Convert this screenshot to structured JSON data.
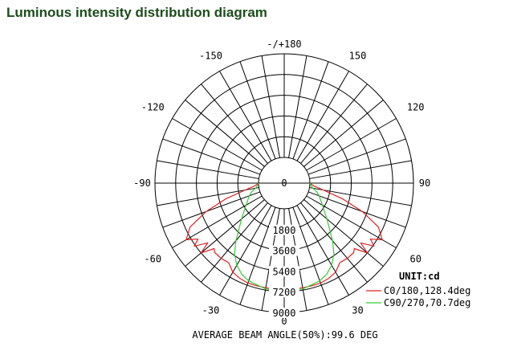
{
  "title": "Luminous intensity distribution diagram",
  "chart_data": {
    "type": "polar",
    "angle_labels": {
      "top": "-/+180",
      "bottom": "0",
      "left_upper": [
        "-150",
        "-120"
      ],
      "right_upper": [
        "150",
        "120"
      ],
      "left_mid": "-90",
      "right_mid": "90",
      "left_lower": [
        "-60",
        "-30"
      ],
      "right_lower": [
        "60",
        "30"
      ]
    },
    "radial_labels": [
      "0",
      "1800",
      "3600",
      "5400",
      "7200",
      "9000"
    ],
    "r_max": 9000,
    "unit": "UNIT:cd",
    "series": [
      {
        "name": "C0/180,128.4deg",
        "color": "#e02020",
        "angles": [
          -90,
          -85,
          -80,
          -75,
          -70,
          -65,
          -60,
          -57,
          -55,
          -52,
          -50,
          -47,
          -45,
          -40,
          -35,
          -30,
          -25,
          -20,
          -15,
          -10,
          -5,
          0,
          5,
          10,
          15,
          20,
          25,
          30,
          35,
          40,
          45,
          47,
          50,
          52,
          55,
          57,
          60,
          65,
          70,
          75,
          80,
          85,
          90
        ],
        "values": [
          0,
          300,
          1200,
          3000,
          5000,
          6800,
          7600,
          6700,
          7300,
          6200,
          7200,
          6100,
          6300,
          6300,
          6200,
          6700,
          6900,
          7000,
          7000,
          7000,
          7000,
          7000,
          7000,
          7000,
          7000,
          7000,
          6900,
          6700,
          6200,
          6300,
          6300,
          6100,
          7200,
          6200,
          7300,
          6700,
          7600,
          6800,
          5000,
          3000,
          1200,
          300,
          0
        ]
      },
      {
        "name": "C90/270,70.7deg",
        "color": "#33cc33",
        "angles": [
          -90,
          -85,
          -80,
          -75,
          -70,
          -60,
          -50,
          -45,
          -40,
          -35,
          -30,
          -25,
          -20,
          -10,
          0,
          10,
          20,
          25,
          30,
          35,
          40,
          45,
          50,
          60,
          70,
          75,
          80,
          85,
          90
        ],
        "values": [
          0,
          100,
          300,
          700,
          1000,
          1600,
          2600,
          3300,
          4300,
          5300,
          6000,
          6500,
          6800,
          7100,
          7200,
          7100,
          6800,
          6500,
          6000,
          5300,
          4300,
          3300,
          2600,
          1600,
          1000,
          700,
          300,
          100,
          0
        ]
      }
    ]
  },
  "footer": "AVERAGE BEAM ANGLE(50%):99.6 DEG"
}
